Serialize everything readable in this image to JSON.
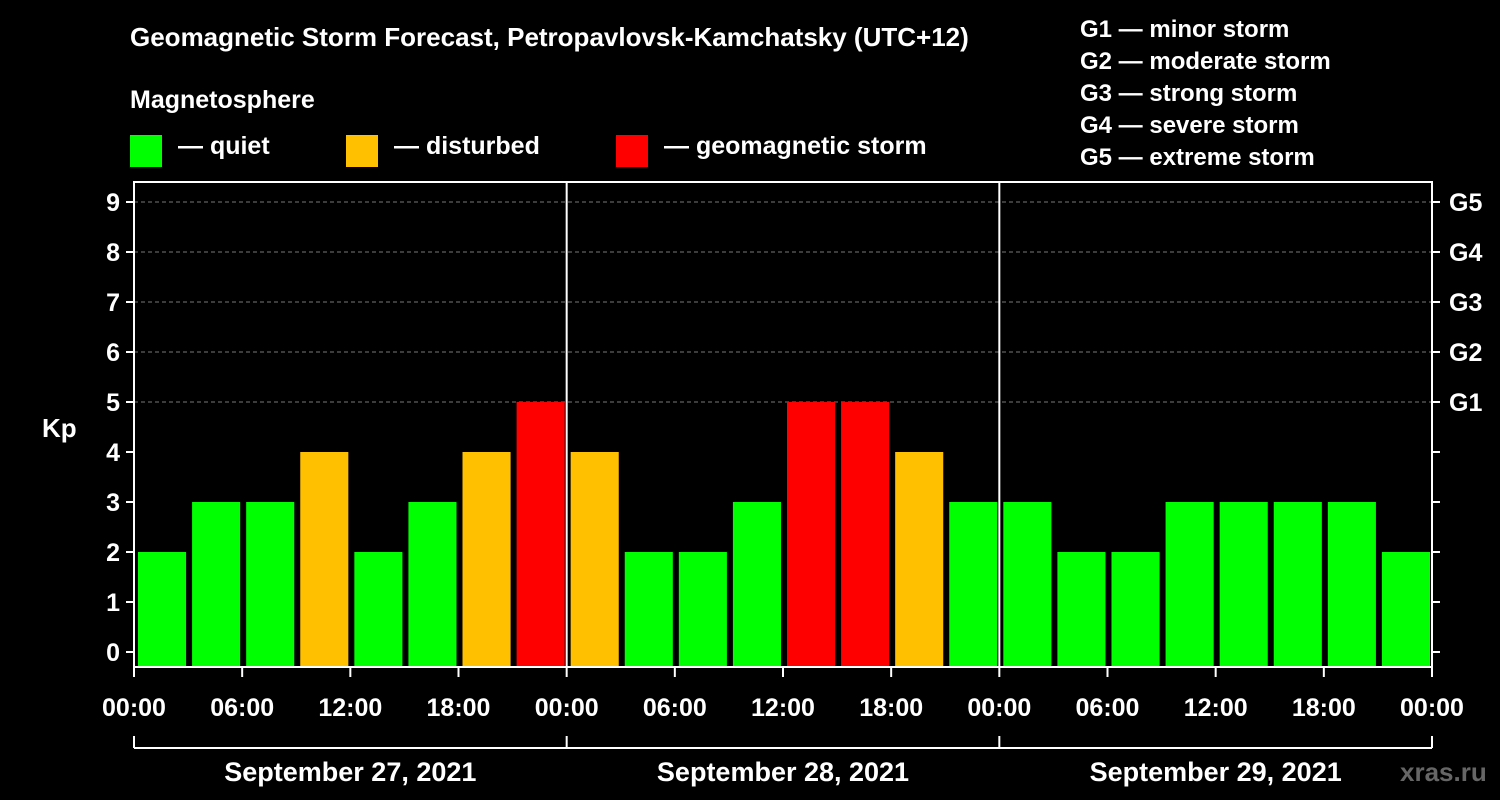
{
  "chart_data": {
    "type": "bar",
    "title": "Geomagnetic Storm Forecast, Petropavlovsk-Kamchatsky (UTC+12)",
    "ylabel": "Kp",
    "ylim": [
      0,
      9
    ],
    "y_ticks": [
      "0",
      "1",
      "2",
      "3",
      "4",
      "5",
      "6",
      "7",
      "8",
      "9"
    ],
    "right_ticks": [
      {
        "kp": 5,
        "label": "G1"
      },
      {
        "kp": 6,
        "label": "G2"
      },
      {
        "kp": 7,
        "label": "G3"
      },
      {
        "kp": 8,
        "label": "G4"
      },
      {
        "kp": 9,
        "label": "G5"
      }
    ],
    "x_tick_labels": [
      "00:00",
      "06:00",
      "12:00",
      "18:00",
      "00:00",
      "06:00",
      "12:00",
      "18:00",
      "00:00",
      "06:00",
      "12:00",
      "18:00",
      "00:00"
    ],
    "days": [
      "September 27, 2021",
      "September 28, 2021",
      "September 29, 2021"
    ],
    "interval_hours": 3,
    "values": [
      2,
      3,
      3,
      4,
      2,
      3,
      4,
      5,
      4,
      2,
      2,
      3,
      5,
      5,
      4,
      3,
      3,
      2,
      2,
      3,
      3,
      3,
      3,
      2
    ],
    "colors": {
      "quiet": "#00ff00",
      "disturbed": "#ffc000",
      "storm": "#ff0000"
    },
    "grid": "dashed horizontal at Kp 5-9"
  },
  "legend": {
    "title": "Magnetosphere",
    "items": [
      {
        "label": "— quiet",
        "color": "#00ff00"
      },
      {
        "label": "— disturbed",
        "color": "#ffc000"
      },
      {
        "label": "— geomagnetic storm",
        "color": "#ff0000"
      }
    ]
  },
  "storm_levels": [
    "G1 — minor storm",
    "G2 — moderate storm",
    "G3 — strong storm",
    "G4 — severe storm",
    "G5 — extreme storm"
  ],
  "watermark": "xras.ru"
}
